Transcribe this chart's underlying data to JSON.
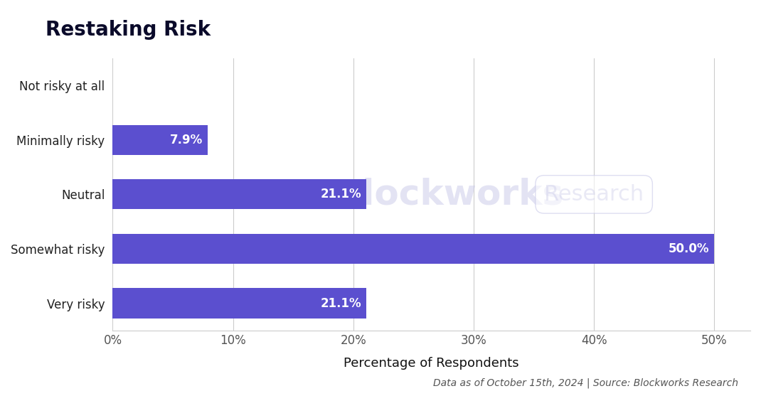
{
  "title": "Restaking Risk",
  "categories": [
    "Not risky at all",
    "Minimally risky",
    "Neutral",
    "Somewhat risky",
    "Very risky"
  ],
  "values": [
    0.0,
    7.9,
    21.1,
    50.0,
    21.1
  ],
  "labels": [
    "",
    "7.9%",
    "21.1%",
    "50.0%",
    "21.1%"
  ],
  "bar_color": "#5b4fcf",
  "xlabel": "Percentage of Respondents",
  "xlim": [
    0,
    53
  ],
  "xticks": [
    0,
    10,
    20,
    30,
    40,
    50
  ],
  "xticklabels": [
    "0%",
    "10%",
    "20%",
    "30%",
    "40%",
    "50%"
  ],
  "background_color": "#ffffff",
  "footer": "Data as of October 15th, 2024 | Source: Blockworks Research",
  "title_fontsize": 20,
  "label_fontsize": 12,
  "tick_fontsize": 12,
  "xlabel_fontsize": 13,
  "footer_fontsize": 10
}
